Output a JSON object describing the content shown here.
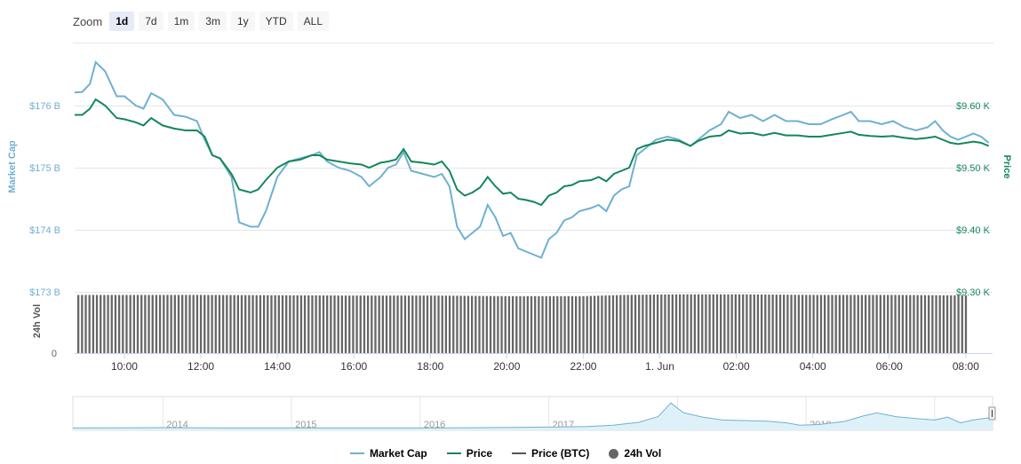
{
  "zoom": {
    "label": "Zoom",
    "buttons": [
      "1d",
      "7d",
      "1m",
      "3m",
      "1y",
      "YTD",
      "ALL"
    ],
    "active": "1d"
  },
  "chart_data": {
    "type": "line",
    "colors": {
      "market_cap": "#6fb0d2",
      "price": "#14875a",
      "price_btc": "#555555",
      "volume": "#666666",
      "grid": "#e6e6e6",
      "navigator_fill": "#dff1f8",
      "navigator_line": "#6fb0d2"
    },
    "left_axis": {
      "title": "Market Cap",
      "ticks": [
        "$176 B",
        "$175 B",
        "$174 B",
        "$173 B"
      ],
      "tick_values": [
        176,
        175,
        174,
        173
      ],
      "range": [
        173,
        177
      ],
      "unit": "B"
    },
    "right_axis": {
      "title": "Price",
      "ticks": [
        "$9.60 K",
        "$9.50 K",
        "$9.40 K",
        "$9.30 K"
      ],
      "tick_values": [
        9.6,
        9.5,
        9.4,
        9.3
      ],
      "range": [
        9.3,
        9.7
      ],
      "unit": "K"
    },
    "volume_axis": {
      "title": "24h Vol",
      "ticks": [
        "0"
      ]
    },
    "x_axis": {
      "labels": [
        "10:00",
        "12:00",
        "14:00",
        "16:00",
        "18:00",
        "20:00",
        "22:00",
        "1. Jun",
        "02:00",
        "04:00",
        "06:00",
        "08:00"
      ],
      "label_hours": [
        10,
        12,
        14,
        16,
        18,
        20,
        22,
        24,
        26,
        28,
        30,
        32
      ],
      "range_hours": [
        8.7,
        32.7
      ]
    },
    "series": [
      {
        "name": "Market Cap",
        "unit": "B USD",
        "points": [
          [
            8.7,
            176.21
          ],
          [
            8.9,
            176.22
          ],
          [
            9.1,
            176.35
          ],
          [
            9.25,
            176.7
          ],
          [
            9.5,
            176.55
          ],
          [
            9.8,
            176.15
          ],
          [
            10.0,
            176.15
          ],
          [
            10.3,
            176.0
          ],
          [
            10.5,
            175.95
          ],
          [
            10.7,
            176.2
          ],
          [
            11.0,
            176.1
          ],
          [
            11.3,
            175.85
          ],
          [
            11.6,
            175.82
          ],
          [
            11.9,
            175.75
          ],
          [
            12.1,
            175.45
          ],
          [
            12.3,
            175.2
          ],
          [
            12.5,
            175.15
          ],
          [
            12.8,
            174.85
          ],
          [
            13.0,
            174.12
          ],
          [
            13.3,
            174.05
          ],
          [
            13.5,
            174.05
          ],
          [
            13.7,
            174.3
          ],
          [
            14.0,
            174.85
          ],
          [
            14.3,
            175.1
          ],
          [
            14.6,
            175.15
          ],
          [
            14.9,
            175.2
          ],
          [
            15.1,
            175.25
          ],
          [
            15.3,
            175.1
          ],
          [
            15.6,
            175.0
          ],
          [
            15.9,
            174.95
          ],
          [
            16.2,
            174.85
          ],
          [
            16.4,
            174.7
          ],
          [
            16.7,
            174.85
          ],
          [
            16.9,
            175.0
          ],
          [
            17.1,
            175.05
          ],
          [
            17.3,
            175.25
          ],
          [
            17.5,
            174.95
          ],
          [
            17.8,
            174.9
          ],
          [
            18.1,
            174.85
          ],
          [
            18.3,
            174.9
          ],
          [
            18.5,
            174.7
          ],
          [
            18.7,
            174.05
          ],
          [
            18.9,
            173.85
          ],
          [
            19.1,
            173.95
          ],
          [
            19.3,
            174.05
          ],
          [
            19.5,
            174.4
          ],
          [
            19.7,
            174.2
          ],
          [
            19.9,
            173.9
          ],
          [
            20.1,
            173.95
          ],
          [
            20.3,
            173.7
          ],
          [
            20.5,
            173.65
          ],
          [
            20.7,
            173.6
          ],
          [
            20.9,
            173.55
          ],
          [
            21.1,
            173.85
          ],
          [
            21.3,
            173.95
          ],
          [
            21.5,
            174.15
          ],
          [
            21.7,
            174.2
          ],
          [
            21.9,
            174.3
          ],
          [
            22.2,
            174.35
          ],
          [
            22.4,
            174.4
          ],
          [
            22.6,
            174.3
          ],
          [
            22.8,
            174.55
          ],
          [
            23.0,
            174.65
          ],
          [
            23.2,
            174.7
          ],
          [
            23.4,
            175.2
          ],
          [
            23.6,
            175.3
          ],
          [
            23.9,
            175.45
          ],
          [
            24.2,
            175.5
          ],
          [
            24.5,
            175.45
          ],
          [
            24.8,
            175.35
          ],
          [
            25.0,
            175.45
          ],
          [
            25.3,
            175.6
          ],
          [
            25.6,
            175.7
          ],
          [
            25.8,
            175.9
          ],
          [
            26.1,
            175.8
          ],
          [
            26.4,
            175.85
          ],
          [
            26.7,
            175.75
          ],
          [
            27.0,
            175.85
          ],
          [
            27.3,
            175.75
          ],
          [
            27.6,
            175.75
          ],
          [
            27.9,
            175.7
          ],
          [
            28.2,
            175.7
          ],
          [
            28.5,
            175.78
          ],
          [
            28.8,
            175.85
          ],
          [
            29.0,
            175.9
          ],
          [
            29.2,
            175.75
          ],
          [
            29.5,
            175.75
          ],
          [
            29.8,
            175.7
          ],
          [
            30.1,
            175.75
          ],
          [
            30.4,
            175.65
          ],
          [
            30.7,
            175.6
          ],
          [
            31.0,
            175.65
          ],
          [
            31.2,
            175.75
          ],
          [
            31.4,
            175.6
          ],
          [
            31.6,
            175.5
          ],
          [
            31.8,
            175.45
          ],
          [
            32.0,
            175.5
          ],
          [
            32.2,
            175.55
          ],
          [
            32.4,
            175.5
          ],
          [
            32.6,
            175.4
          ]
        ]
      },
      {
        "name": "Price",
        "unit": "K USD",
        "points": [
          [
            8.7,
            9.585
          ],
          [
            8.9,
            9.585
          ],
          [
            9.1,
            9.595
          ],
          [
            9.25,
            9.61
          ],
          [
            9.5,
            9.6
          ],
          [
            9.8,
            9.58
          ],
          [
            10.0,
            9.578
          ],
          [
            10.3,
            9.573
          ],
          [
            10.5,
            9.568
          ],
          [
            10.7,
            9.58
          ],
          [
            11.0,
            9.568
          ],
          [
            11.3,
            9.563
          ],
          [
            11.6,
            9.56
          ],
          [
            11.9,
            9.56
          ],
          [
            12.1,
            9.55
          ],
          [
            12.3,
            9.52
          ],
          [
            12.5,
            9.515
          ],
          [
            12.8,
            9.49
          ],
          [
            13.0,
            9.465
          ],
          [
            13.3,
            9.46
          ],
          [
            13.5,
            9.465
          ],
          [
            13.7,
            9.48
          ],
          [
            14.0,
            9.5
          ],
          [
            14.3,
            9.51
          ],
          [
            14.6,
            9.513
          ],
          [
            14.9,
            9.52
          ],
          [
            15.1,
            9.52
          ],
          [
            15.3,
            9.513
          ],
          [
            15.6,
            9.51
          ],
          [
            15.9,
            9.507
          ],
          [
            16.2,
            9.505
          ],
          [
            16.4,
            9.5
          ],
          [
            16.7,
            9.508
          ],
          [
            16.9,
            9.51
          ],
          [
            17.1,
            9.513
          ],
          [
            17.3,
            9.53
          ],
          [
            17.5,
            9.51
          ],
          [
            17.8,
            9.508
          ],
          [
            18.1,
            9.505
          ],
          [
            18.3,
            9.51
          ],
          [
            18.5,
            9.495
          ],
          [
            18.7,
            9.465
          ],
          [
            18.9,
            9.455
          ],
          [
            19.1,
            9.46
          ],
          [
            19.3,
            9.468
          ],
          [
            19.5,
            9.485
          ],
          [
            19.7,
            9.47
          ],
          [
            19.9,
            9.458
          ],
          [
            20.1,
            9.46
          ],
          [
            20.3,
            9.45
          ],
          [
            20.5,
            9.448
          ],
          [
            20.7,
            9.445
          ],
          [
            20.9,
            9.44
          ],
          [
            21.1,
            9.455
          ],
          [
            21.3,
            9.46
          ],
          [
            21.5,
            9.47
          ],
          [
            21.7,
            9.472
          ],
          [
            21.9,
            9.478
          ],
          [
            22.2,
            9.48
          ],
          [
            22.4,
            9.485
          ],
          [
            22.6,
            9.478
          ],
          [
            22.8,
            9.49
          ],
          [
            23.0,
            9.495
          ],
          [
            23.2,
            9.5
          ],
          [
            23.4,
            9.53
          ],
          [
            23.6,
            9.535
          ],
          [
            23.9,
            9.54
          ],
          [
            24.2,
            9.545
          ],
          [
            24.5,
            9.543
          ],
          [
            24.8,
            9.535
          ],
          [
            25.0,
            9.543
          ],
          [
            25.3,
            9.55
          ],
          [
            25.6,
            9.552
          ],
          [
            25.8,
            9.56
          ],
          [
            26.1,
            9.555
          ],
          [
            26.4,
            9.556
          ],
          [
            26.7,
            9.552
          ],
          [
            27.0,
            9.556
          ],
          [
            27.3,
            9.552
          ],
          [
            27.6,
            9.552
          ],
          [
            27.9,
            9.55
          ],
          [
            28.2,
            9.55
          ],
          [
            28.5,
            9.553
          ],
          [
            28.8,
            9.556
          ],
          [
            29.0,
            9.558
          ],
          [
            29.2,
            9.553
          ],
          [
            29.5,
            9.551
          ],
          [
            29.8,
            9.55
          ],
          [
            30.1,
            9.551
          ],
          [
            30.4,
            9.548
          ],
          [
            30.7,
            9.546
          ],
          [
            31.0,
            9.548
          ],
          [
            31.2,
            9.55
          ],
          [
            31.4,
            9.545
          ],
          [
            31.6,
            9.54
          ],
          [
            31.8,
            9.538
          ],
          [
            32.0,
            9.54
          ],
          [
            32.2,
            9.542
          ],
          [
            32.4,
            9.54
          ],
          [
            32.6,
            9.535
          ]
        ]
      },
      {
        "name": "Price (BTC)",
        "points": []
      },
      {
        "name": "24h Vol",
        "note": "about 240 evenly spaced bars of nearly constant height",
        "bar_count": 240,
        "relative_heights": [
          [
            8.7,
            0.95
          ],
          [
            12.0,
            0.95
          ],
          [
            16.0,
            0.94
          ],
          [
            18.0,
            0.94
          ],
          [
            20.0,
            0.93
          ],
          [
            22.0,
            0.93
          ],
          [
            23.0,
            0.95
          ],
          [
            24.5,
            0.96
          ],
          [
            26.0,
            0.96
          ],
          [
            28.0,
            0.95
          ],
          [
            30.0,
            0.95
          ],
          [
            32.6,
            0.94
          ]
        ]
      }
    ],
    "navigator": {
      "labels": [
        "2014",
        "2015",
        "2016",
        "2017",
        "2018",
        "2019",
        "2020"
      ],
      "label_years": [
        2014,
        2015,
        2016,
        2017,
        2018,
        2019,
        2020
      ],
      "range_years": [
        2013.3,
        2020.45
      ],
      "relative_values": [
        [
          2013.3,
          0.02
        ],
        [
          2014.0,
          0.03
        ],
        [
          2014.5,
          0.02
        ],
        [
          2015.0,
          0.02
        ],
        [
          2015.5,
          0.02
        ],
        [
          2016.0,
          0.02
        ],
        [
          2016.5,
          0.03
        ],
        [
          2017.0,
          0.05
        ],
        [
          2017.3,
          0.07
        ],
        [
          2017.5,
          0.12
        ],
        [
          2017.7,
          0.22
        ],
        [
          2017.85,
          0.42
        ],
        [
          2017.95,
          0.9
        ],
        [
          2018.0,
          0.72
        ],
        [
          2018.05,
          0.55
        ],
        [
          2018.2,
          0.4
        ],
        [
          2018.35,
          0.3
        ],
        [
          2018.5,
          0.28
        ],
        [
          2018.7,
          0.26
        ],
        [
          2018.85,
          0.2
        ],
        [
          2018.95,
          0.12
        ],
        [
          2019.1,
          0.14
        ],
        [
          2019.3,
          0.25
        ],
        [
          2019.45,
          0.45
        ],
        [
          2019.55,
          0.55
        ],
        [
          2019.7,
          0.42
        ],
        [
          2019.85,
          0.35
        ],
        [
          2020.0,
          0.3
        ],
        [
          2020.1,
          0.4
        ],
        [
          2020.2,
          0.2
        ],
        [
          2020.3,
          0.3
        ],
        [
          2020.45,
          0.4
        ]
      ]
    }
  },
  "legend": [
    {
      "label": "Market Cap",
      "swatch": "line",
      "color": "#6fb0d2"
    },
    {
      "label": "Price",
      "swatch": "line",
      "color": "#14875a"
    },
    {
      "label": "Price (BTC)",
      "swatch": "line",
      "color": "#555555"
    },
    {
      "label": "24h Vol",
      "swatch": "dot",
      "color": "#666666"
    }
  ]
}
